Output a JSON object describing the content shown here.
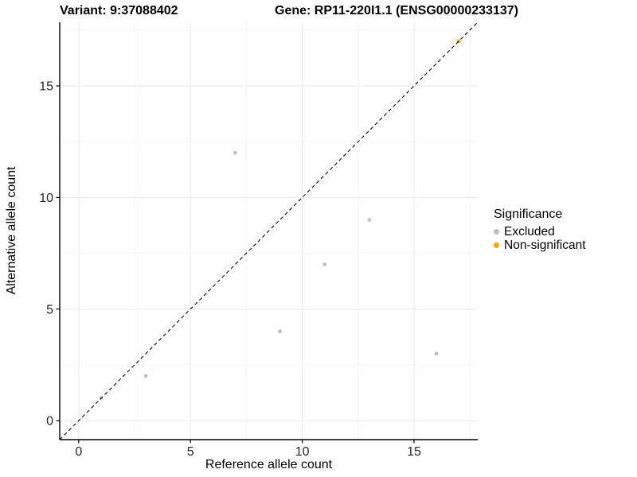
{
  "header": {
    "variant_title": "Variant: 9:37088402",
    "gene_title": "Gene: RP11-220I1.1 (ENSG00000233137)"
  },
  "chart_data": {
    "type": "scatter",
    "title_left": "Variant: 9:37088402",
    "title_right": "Gene: RP11-220I1.1 (ENSG00000233137)",
    "xlabel": "Reference allele count",
    "ylabel": "Alternative allele count",
    "xlim": [
      -0.85,
      17.85
    ],
    "ylim": [
      -0.85,
      17.85
    ],
    "x_ticks": [
      0,
      5,
      10,
      15
    ],
    "y_ticks": [
      0,
      5,
      10,
      15
    ],
    "x_minor_ticks": [
      2.5,
      7.5,
      12.5,
      17.5
    ],
    "y_minor_ticks": [
      2.5,
      7.5,
      12.5,
      17.5
    ],
    "grid": true,
    "series": [
      {
        "name": "Excluded",
        "color": "#BEBEBE",
        "points": [
          [
            1,
            1
          ],
          [
            3,
            2
          ],
          [
            7,
            12
          ],
          [
            9,
            4
          ],
          [
            11,
            7
          ],
          [
            13,
            9
          ],
          [
            16,
            3
          ]
        ]
      },
      {
        "name": "Non-significant",
        "color": "#FFA500",
        "points": [
          [
            17,
            17
          ]
        ]
      }
    ],
    "reference_line": {
      "kind": "identity-diagonal",
      "style": "dashed",
      "color": "#000000"
    },
    "legend": {
      "title": "Significance",
      "position": "right"
    },
    "colors": {
      "major_grid": "#EBEBEB",
      "minor_grid": "#F4F4F4",
      "axis_line": "#000000",
      "tick_text": "#262626"
    }
  }
}
